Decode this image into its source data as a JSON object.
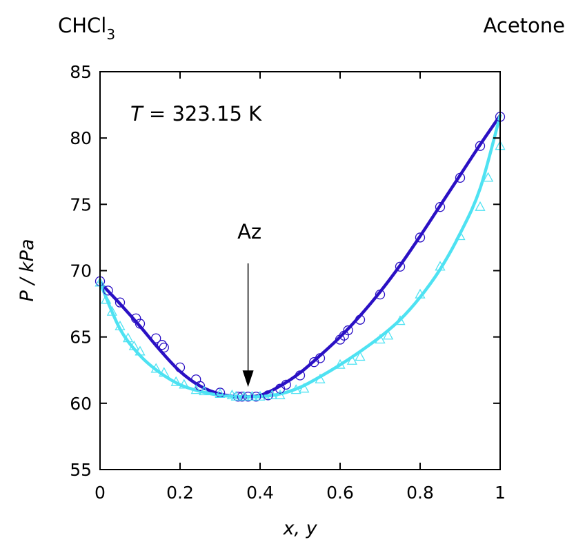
{
  "chart_data": {
    "type": "line",
    "title": "",
    "xlabel": "x, y",
    "ylabel": "P / kPa",
    "xlim": [
      0,
      1
    ],
    "ylim": [
      55,
      85
    ],
    "xticks": [
      0,
      0.2,
      0.4,
      0.6,
      0.8,
      1
    ],
    "xtick_labels": [
      "0",
      "0.2",
      "0.4",
      "0.6",
      "0.8",
      "1"
    ],
    "yticks": [
      55,
      60,
      65,
      70,
      75,
      80,
      85
    ],
    "ytick_labels": [
      "55",
      "60",
      "65",
      "70",
      "75",
      "80",
      "85"
    ],
    "grid": false,
    "legend": "none",
    "left_label": {
      "base": "CHCl",
      "sub": "3"
    },
    "right_label": "Acetone",
    "temperature_label": {
      "symbol": "T",
      "value": " = 323.15 K"
    },
    "azeotrope": {
      "label": "Az",
      "x": 0.37,
      "y": 60.5
    },
    "series": [
      {
        "style": "curve",
        "color": "#2a10c4",
        "x": [
          0,
          0.05,
          0.1,
          0.15,
          0.2,
          0.25,
          0.3,
          0.35,
          0.4,
          0.45,
          0.5,
          0.55,
          0.6,
          0.65,
          0.7,
          0.75,
          0.8,
          0.85,
          0.9,
          0.95,
          1
        ],
        "y": [
          69.1,
          67.5,
          65.8,
          64.0,
          62.4,
          61.3,
          60.7,
          60.5,
          60.6,
          61.3,
          62.3,
          63.6,
          65.0,
          66.6,
          68.4,
          70.4,
          72.6,
          74.9,
          77.2,
          79.5,
          81.7
        ]
      },
      {
        "style": "curve",
        "color": "#4ee2f2",
        "x": [
          0,
          0.05,
          0.1,
          0.15,
          0.2,
          0.25,
          0.3,
          0.35,
          0.4,
          0.45,
          0.5,
          0.55,
          0.6,
          0.65,
          0.7,
          0.75,
          0.8,
          0.85,
          0.9,
          0.95,
          1
        ],
        "y": [
          69.1,
          65.6,
          63.6,
          62.3,
          61.4,
          60.9,
          60.6,
          60.5,
          60.5,
          60.7,
          61.2,
          62.0,
          62.9,
          63.9,
          65.0,
          66.3,
          68.0,
          70.1,
          72.8,
          76.2,
          81.7
        ]
      },
      {
        "style": "circles",
        "color": "#2a10c4",
        "x": [
          0,
          0.02,
          0.05,
          0.09,
          0.1,
          0.14,
          0.155,
          0.16,
          0.2,
          0.24,
          0.25,
          0.3,
          0.345,
          0.355,
          0.37,
          0.39,
          0.42,
          0.45,
          0.465,
          0.5,
          0.535,
          0.55,
          0.6,
          0.61,
          0.62,
          0.65,
          0.7,
          0.75,
          0.8,
          0.85,
          0.9,
          0.95,
          1
        ],
        "y": [
          69.2,
          68.5,
          67.6,
          66.4,
          66.0,
          64.9,
          64.4,
          64.2,
          62.7,
          61.8,
          61.3,
          60.8,
          60.5,
          60.5,
          60.5,
          60.5,
          60.6,
          61.1,
          61.4,
          62.1,
          63.1,
          63.4,
          64.8,
          65.1,
          65.5,
          66.3,
          68.2,
          70.3,
          72.5,
          74.8,
          77.0,
          79.4,
          81.6
        ]
      },
      {
        "style": "triangles",
        "color": "#4ee2f2",
        "x": [
          0,
          0.015,
          0.03,
          0.05,
          0.07,
          0.085,
          0.1,
          0.14,
          0.16,
          0.19,
          0.21,
          0.24,
          0.26,
          0.3,
          0.33,
          0.34,
          0.36,
          0.38,
          0.4,
          0.43,
          0.45,
          0.49,
          0.51,
          0.55,
          0.6,
          0.63,
          0.65,
          0.7,
          0.72,
          0.75,
          0.8,
          0.85,
          0.9,
          0.95,
          0.97,
          1
        ],
        "y": [
          69.1,
          67.8,
          66.9,
          65.8,
          64.9,
          64.3,
          63.9,
          62.6,
          62.3,
          61.6,
          61.4,
          61.0,
          60.9,
          60.7,
          60.6,
          60.5,
          60.5,
          60.5,
          60.5,
          60.6,
          60.6,
          61.0,
          61.1,
          61.8,
          62.9,
          63.2,
          63.5,
          64.8,
          65.1,
          66.2,
          68.2,
          70.3,
          72.6,
          74.8,
          77.0,
          79.4
        ]
      }
    ]
  }
}
